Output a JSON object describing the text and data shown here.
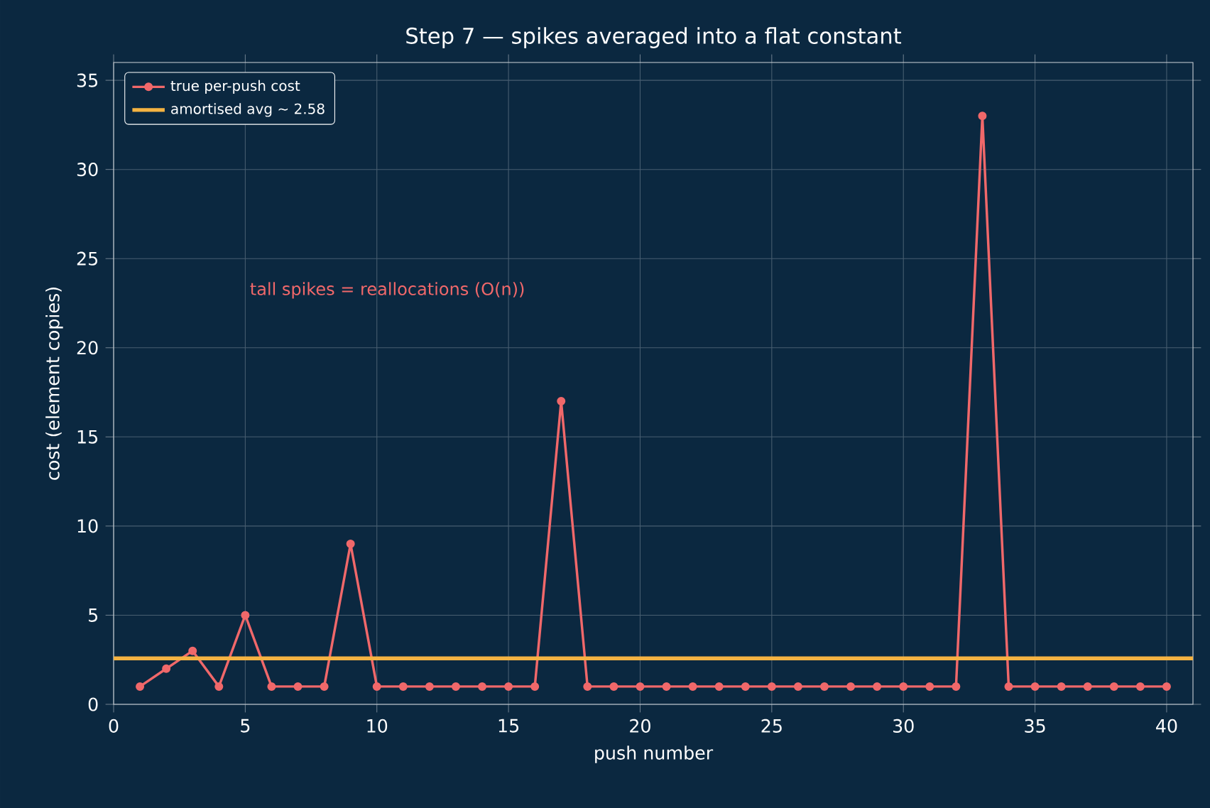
{
  "chart_data": {
    "type": "line",
    "title": "Step 7 — spikes averaged into a flat constant",
    "xlabel": "push number",
    "ylabel": "cost (element copies)",
    "x": [
      1,
      2,
      3,
      4,
      5,
      6,
      7,
      8,
      9,
      10,
      11,
      12,
      13,
      14,
      15,
      16,
      17,
      18,
      19,
      20,
      21,
      22,
      23,
      24,
      25,
      26,
      27,
      28,
      29,
      30,
      31,
      32,
      33,
      34,
      35,
      36,
      37,
      38,
      39,
      40
    ],
    "series": [
      {
        "name": "true per-push cost",
        "color": "#f0686a",
        "values": [
          1,
          2,
          3,
          1,
          5,
          1,
          1,
          1,
          9,
          1,
          1,
          1,
          1,
          1,
          1,
          1,
          17,
          1,
          1,
          1,
          1,
          1,
          1,
          1,
          1,
          1,
          1,
          1,
          1,
          1,
          1,
          1,
          33,
          1,
          1,
          1,
          1,
          1,
          1,
          1
        ]
      }
    ],
    "ref_lines": [
      {
        "axis": "y",
        "value": 2.58,
        "label": "amortised avg ~ 2.58",
        "color": "#f5b342"
      }
    ],
    "annotations": [
      "tall spikes = reallocations (O(n))"
    ],
    "xlim": [
      0,
      41
    ],
    "ylim": [
      0,
      36
    ],
    "xticks": [
      0,
      5,
      10,
      15,
      20,
      25,
      30,
      35,
      40
    ],
    "yticks": [
      0,
      5,
      10,
      15,
      20,
      25,
      30,
      35
    ],
    "grid": true,
    "legend": "top left",
    "marker": "circle",
    "line_style": "solid"
  }
}
